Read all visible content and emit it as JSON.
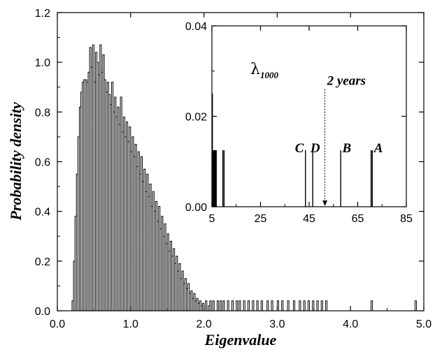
{
  "chart_data": [
    {
      "type": "histogram",
      "xlabel": "Eigenvalue",
      "ylabel": "Probability density",
      "xlim": [
        0.0,
        5.0
      ],
      "ylim": [
        0.0,
        1.2
      ],
      "xticks": [
        0.0,
        1.0,
        2.0,
        3.0,
        4.0,
        5.0
      ],
      "xtick_labels": [
        "0.0",
        "1.0",
        "2.0",
        "3.0",
        "4.0",
        "5.0"
      ],
      "yticks": [
        0.0,
        0.2,
        0.4,
        0.6,
        0.8,
        1.0,
        1.2
      ],
      "ytick_labels": [
        "0.0",
        "0.2",
        "0.4",
        "0.6",
        "0.8",
        "1.0",
        "1.2"
      ],
      "bin_width": 0.02,
      "bin_start": 0.2,
      "bins": [
        [
          0.2,
          0.04
        ],
        [
          0.22,
          0.2
        ],
        [
          0.24,
          0.38
        ],
        [
          0.26,
          0.55
        ],
        [
          0.28,
          0.7
        ],
        [
          0.3,
          0.82
        ],
        [
          0.32,
          0.88
        ],
        [
          0.34,
          0.92
        ],
        [
          0.36,
          0.93
        ],
        [
          0.38,
          0.93
        ],
        [
          0.4,
          0.92
        ],
        [
          0.42,
          0.96
        ],
        [
          0.44,
          1.06
        ],
        [
          0.46,
          0.98
        ],
        [
          0.48,
          1.07
        ],
        [
          0.5,
          0.92
        ],
        [
          0.52,
          1.04
        ],
        [
          0.54,
          1.0
        ],
        [
          0.56,
          0.95
        ],
        [
          0.58,
          1.07
        ],
        [
          0.6,
          0.96
        ],
        [
          0.62,
          1.03
        ],
        [
          0.64,
          0.93
        ],
        [
          0.66,
          0.88
        ],
        [
          0.68,
          0.92
        ],
        [
          0.7,
          0.87
        ],
        [
          0.72,
          0.83
        ],
        [
          0.74,
          0.92
        ],
        [
          0.76,
          0.8
        ],
        [
          0.78,
          0.86
        ],
        [
          0.8,
          0.78
        ],
        [
          0.82,
          0.82
        ],
        [
          0.84,
          0.75
        ],
        [
          0.86,
          0.86
        ],
        [
          0.88,
          0.72
        ],
        [
          0.9,
          0.78
        ],
        [
          0.92,
          0.7
        ],
        [
          0.94,
          0.76
        ],
        [
          0.96,
          0.68
        ],
        [
          0.98,
          0.74
        ],
        [
          1.0,
          0.64
        ],
        [
          1.02,
          0.7
        ],
        [
          1.04,
          0.62
        ],
        [
          1.06,
          0.67
        ],
        [
          1.08,
          0.58
        ],
        [
          1.1,
          0.64
        ],
        [
          1.12,
          0.55
        ],
        [
          1.14,
          0.62
        ],
        [
          1.16,
          0.52
        ],
        [
          1.18,
          0.57
        ],
        [
          1.2,
          0.48
        ],
        [
          1.22,
          0.55
        ],
        [
          1.24,
          0.46
        ],
        [
          1.26,
          0.51
        ],
        [
          1.28,
          0.42
        ],
        [
          1.3,
          0.48
        ],
        [
          1.32,
          0.4
        ],
        [
          1.34,
          0.44
        ],
        [
          1.36,
          0.36
        ],
        [
          1.38,
          0.42
        ],
        [
          1.4,
          0.33
        ],
        [
          1.42,
          0.38
        ],
        [
          1.44,
          0.3
        ],
        [
          1.46,
          0.35
        ],
        [
          1.48,
          0.27
        ],
        [
          1.5,
          0.31
        ],
        [
          1.52,
          0.24
        ],
        [
          1.54,
          0.28
        ],
        [
          1.56,
          0.22
        ],
        [
          1.58,
          0.25
        ],
        [
          1.6,
          0.19
        ],
        [
          1.62,
          0.22
        ],
        [
          1.64,
          0.16
        ],
        [
          1.66,
          0.19
        ],
        [
          1.68,
          0.13
        ],
        [
          1.7,
          0.16
        ],
        [
          1.72,
          0.11
        ],
        [
          1.74,
          0.13
        ],
        [
          1.76,
          0.09
        ],
        [
          1.78,
          0.11
        ],
        [
          1.8,
          0.07
        ],
        [
          1.82,
          0.08
        ],
        [
          1.84,
          0.05
        ],
        [
          1.86,
          0.07
        ],
        [
          1.88,
          0.04
        ],
        [
          1.9,
          0.05
        ],
        [
          1.92,
          0.03
        ],
        [
          1.94,
          0.04
        ],
        [
          1.96,
          0.02
        ],
        [
          1.98,
          0.03
        ],
        [
          2.0,
          0.0
        ],
        [
          2.02,
          0.04
        ],
        [
          2.04,
          0.0
        ],
        [
          2.06,
          0.02
        ],
        [
          2.08,
          0.04
        ],
        [
          2.1,
          0.0
        ],
        [
          2.12,
          0.04
        ],
        [
          2.14,
          0.0
        ],
        [
          2.18,
          0.04
        ],
        [
          2.22,
          0.04
        ],
        [
          2.26,
          0.04
        ],
        [
          2.32,
          0.04
        ],
        [
          2.38,
          0.04
        ],
        [
          2.44,
          0.04
        ],
        [
          2.48,
          0.04
        ],
        [
          2.54,
          0.04
        ],
        [
          2.6,
          0.04
        ],
        [
          2.66,
          0.04
        ],
        [
          2.72,
          0.04
        ],
        [
          2.78,
          0.04
        ],
        [
          2.86,
          0.04
        ],
        [
          2.92,
          0.04
        ],
        [
          3.0,
          0.04
        ],
        [
          3.06,
          0.04
        ],
        [
          3.14,
          0.04
        ],
        [
          3.22,
          0.04
        ],
        [
          3.3,
          0.04
        ],
        [
          3.36,
          0.04
        ],
        [
          3.42,
          0.04
        ],
        [
          3.48,
          0.04
        ],
        [
          3.54,
          0.04
        ],
        [
          3.6,
          0.04
        ],
        [
          3.66,
          0.04
        ],
        [
          4.28,
          0.04
        ],
        [
          4.88,
          0.04
        ]
      ]
    },
    {
      "type": "bar",
      "inset": true,
      "xlim": [
        5,
        85
      ],
      "ylim": [
        0.0,
        0.04
      ],
      "xticks": [
        5,
        25,
        45,
        65,
        85
      ],
      "xtick_labels": [
        "5",
        "25",
        "45",
        "65",
        "85"
      ],
      "yticks": [
        0.0,
        0.02,
        0.04
      ],
      "ytick_labels": [
        "0.00",
        "0.02",
        "0.04"
      ],
      "lambda_symbol": "λ",
      "lambda_subscript": "1000",
      "spikes": [
        {
          "x": 5.2,
          "y": 0.025
        },
        {
          "x": 5.6,
          "y": 0.0125
        },
        {
          "x": 5.9,
          "y": 0.0125
        },
        {
          "x": 6.2,
          "y": 0.0125
        },
        {
          "x": 6.5,
          "y": 0.0125
        },
        {
          "x": 6.8,
          "y": 0.0125
        },
        {
          "x": 9.5,
          "y": 0.0125
        },
        {
          "x": 10.0,
          "y": 0.0125
        },
        {
          "x": 43.5,
          "y": 0.0125
        },
        {
          "x": 46.5,
          "y": 0.0125
        },
        {
          "x": 58.0,
          "y": 0.0125
        },
        {
          "x": 70.5,
          "y": 0.0125
        },
        {
          "x": 71.0,
          "y": 0.0125
        }
      ],
      "annotations": [
        {
          "label": "C",
          "x": 41.0
        },
        {
          "label": "D",
          "x": 47.5
        },
        {
          "label": "B",
          "x": 60.5
        },
        {
          "label": "A",
          "x": 73.5
        }
      ],
      "arrow": {
        "label": "2 years",
        "x": 51.5,
        "from_y": 0.026,
        "to_y": 0.0
      }
    }
  ]
}
